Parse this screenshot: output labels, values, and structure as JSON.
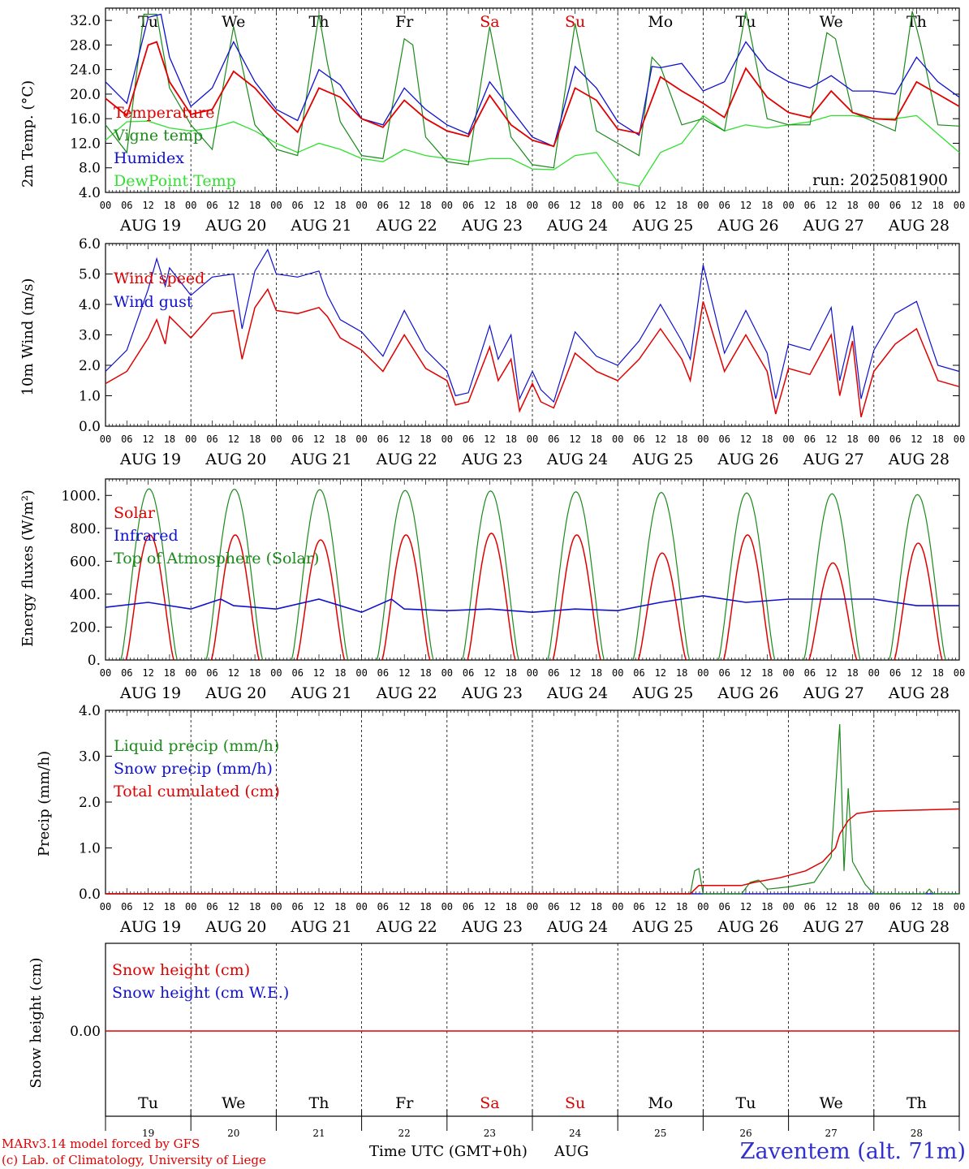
{
  "chart_data": [
    {
      "type": "line",
      "ylabel": "2m Temp. (°C)",
      "ylim": [
        4,
        34
      ],
      "yticks": [
        "4.0",
        "8.0",
        "12.0",
        "16.0",
        "20.0",
        "24.0",
        "28.0",
        "32.0"
      ],
      "legend": [
        "Temperature",
        "Vigne temp",
        "Humidex",
        "DewPoint Temp"
      ],
      "annotation": "run: 2025081900",
      "series": [
        {
          "name": "Temperature",
          "color": "#e00000",
          "x_days": [
            0,
            0.25,
            0.5,
            0.6,
            0.75,
            1,
            1.25,
            1.5,
            1.75,
            2,
            2.25,
            2.5,
            2.75,
            3,
            3.25,
            3.5,
            3.75,
            4,
            4.25,
            4.5,
            4.75,
            5,
            5.25,
            5.5,
            5.75,
            6,
            6.25,
            6.5,
            6.75,
            7,
            7.25,
            7.5,
            7.75,
            8,
            8.25,
            8.5,
            8.75,
            9,
            9.25,
            9.5,
            9.75,
            10
          ],
          "values": [
            19.3,
            16.5,
            28,
            28.5,
            22,
            16.7,
            17.5,
            23.7,
            21,
            17,
            13.8,
            21,
            19.5,
            16,
            14.6,
            19,
            16,
            14,
            13.1,
            19.8,
            15,
            12.5,
            11.5,
            21,
            19,
            14.3,
            13.6,
            22.8,
            20.5,
            18.5,
            16.2,
            24.2,
            19.5,
            17,
            16.2,
            20.5,
            17,
            16,
            15.8,
            22,
            20,
            18
          ]
        },
        {
          "name": "Vigne temp",
          "color": "#1a8a1a",
          "x_days": [
            0,
            0.25,
            0.45,
            0.6,
            0.75,
            1,
            1.25,
            1.5,
            1.75,
            2,
            2.25,
            2.5,
            2.6,
            2.75,
            3,
            3.25,
            3.5,
            3.6,
            3.75,
            4,
            4.25,
            4.5,
            4.75,
            5,
            5.25,
            5.5,
            5.75,
            6,
            6.25,
            6.4,
            6.5,
            6.75,
            7,
            7.25,
            7.5,
            7.75,
            8,
            8.25,
            8.45,
            8.55,
            8.75,
            9,
            9.25,
            9.45,
            9.55,
            9.75,
            10
          ],
          "values": [
            15,
            10.5,
            33,
            33,
            21,
            15,
            11,
            31,
            15,
            11,
            10,
            33,
            25,
            15.5,
            10,
            9.5,
            29,
            28,
            13,
            9,
            8.5,
            31,
            13,
            8.5,
            8,
            31.5,
            14,
            12,
            10,
            26,
            24.5,
            15,
            16,
            14,
            33.5,
            16,
            15,
            15,
            30,
            29,
            17,
            15.5,
            14,
            33.5,
            28,
            15,
            14.8
          ]
        },
        {
          "name": "Humidex",
          "color": "#1010d0",
          "x_days": [
            0,
            0.25,
            0.5,
            0.65,
            0.75,
            1,
            1.25,
            1.5,
            1.75,
            2,
            2.25,
            2.5,
            2.75,
            3,
            3.25,
            3.5,
            3.75,
            4,
            4.25,
            4.5,
            4.75,
            5,
            5.25,
            5.5,
            5.75,
            6,
            6.25,
            6.4,
            6.5,
            6.75,
            7,
            7.25,
            7.5,
            7.75,
            8,
            8.25,
            8.5,
            8.75,
            9,
            9.25,
            9.5,
            9.75,
            10
          ],
          "values": [
            22,
            18.5,
            32.5,
            33,
            26,
            18,
            21,
            28.5,
            22,
            17.5,
            15.7,
            24,
            21.5,
            16,
            15,
            21,
            17.5,
            15,
            13.5,
            22,
            17.5,
            13,
            11.5,
            24.5,
            21,
            15.5,
            13.3,
            24.5,
            24.3,
            25,
            20.5,
            22,
            28.5,
            24,
            22,
            21,
            23,
            20.5,
            20.5,
            20,
            26,
            22,
            19.5
          ]
        },
        {
          "name": "DewPoint Temp",
          "color": "#30e030",
          "x_days": [
            0,
            0.25,
            0.5,
            0.75,
            1,
            1.25,
            1.5,
            1.75,
            2,
            2.25,
            2.5,
            2.75,
            3,
            3.25,
            3.5,
            3.75,
            4,
            4.25,
            4.5,
            4.75,
            5,
            5.25,
            5.5,
            5.75,
            6,
            6.25,
            6.5,
            6.75,
            7,
            7.25,
            7.5,
            7.75,
            8,
            8.25,
            8.5,
            8.75,
            9,
            9.25,
            9.5,
            9.75,
            10
          ],
          "values": [
            12.5,
            15.5,
            15.6,
            14.5,
            14,
            14.5,
            15.5,
            14,
            12,
            10.5,
            12,
            11,
            9.5,
            9,
            11,
            10,
            9.5,
            9,
            9.5,
            9.5,
            7.8,
            7.7,
            10,
            10.5,
            5.7,
            5,
            10.5,
            12,
            16.5,
            14,
            15,
            14.5,
            15,
            15.5,
            16.5,
            16.5,
            16,
            16,
            16.5,
            13.5,
            10.5
          ]
        }
      ]
    },
    {
      "type": "line",
      "ylabel": "10m Wind (m/s)",
      "ylim": [
        0,
        6
      ],
      "yticks": [
        "0.0",
        "1.0",
        "2.0",
        "3.0",
        "4.0",
        "5.0",
        "6.0"
      ],
      "reference_line": 5,
      "legend": [
        "Wind speed",
        "Wind gust"
      ],
      "series": [
        {
          "name": "Wind speed",
          "color": "#e00000",
          "x_days": [
            0,
            0.25,
            0.5,
            0.6,
            0.7,
            0.75,
            1,
            1.25,
            1.5,
            1.6,
            1.75,
            1.9,
            2,
            2.25,
            2.5,
            2.6,
            2.75,
            3,
            3.25,
            3.5,
            3.75,
            4,
            4.1,
            4.25,
            4.5,
            4.6,
            4.75,
            4.85,
            5,
            5.1,
            5.25,
            5.5,
            5.75,
            6,
            6.25,
            6.5,
            6.75,
            6.85,
            7,
            7.25,
            7.5,
            7.75,
            7.85,
            8,
            8.25,
            8.5,
            8.6,
            8.75,
            8.85,
            9,
            9.25,
            9.5,
            9.75,
            10
          ],
          "values": [
            1.4,
            1.8,
            2.9,
            3.5,
            2.7,
            3.6,
            2.9,
            3.7,
            3.8,
            2.2,
            3.9,
            4.5,
            3.8,
            3.7,
            3.9,
            3.6,
            2.9,
            2.5,
            1.8,
            3,
            1.9,
            1.5,
            0.7,
            0.8,
            2.6,
            1.5,
            2.2,
            0.5,
            1.4,
            0.8,
            0.6,
            2.4,
            1.8,
            1.5,
            2.2,
            3.2,
            2.2,
            1.5,
            4.1,
            1.8,
            3,
            1.8,
            0.4,
            1.9,
            1.7,
            3,
            1,
            2.8,
            0.3,
            1.8,
            2.7,
            3.2,
            1.5,
            1.3
          ]
        },
        {
          "name": "Wind gust",
          "color": "#1010d0",
          "x_days": [
            0,
            0.25,
            0.5,
            0.6,
            0.7,
            0.75,
            1,
            1.25,
            1.5,
            1.6,
            1.75,
            1.9,
            2,
            2.25,
            2.5,
            2.6,
            2.75,
            3,
            3.25,
            3.5,
            3.75,
            4,
            4.1,
            4.25,
            4.5,
            4.6,
            4.75,
            4.85,
            5,
            5.1,
            5.25,
            5.5,
            5.75,
            6,
            6.25,
            6.5,
            6.75,
            6.85,
            7,
            7.25,
            7.5,
            7.75,
            7.85,
            8,
            8.25,
            8.5,
            8.6,
            8.75,
            8.85,
            9,
            9.25,
            9.5,
            9.75,
            10
          ],
          "values": [
            1.8,
            2.5,
            4.5,
            5.5,
            4.6,
            5.2,
            4.3,
            4.9,
            5,
            3.2,
            5.1,
            5.8,
            5,
            4.9,
            5.1,
            4.3,
            3.5,
            3.1,
            2.3,
            3.8,
            2.5,
            1.8,
            1,
            1.1,
            3.3,
            2.2,
            3,
            0.9,
            1.8,
            1.2,
            0.8,
            3.1,
            2.3,
            2,
            2.8,
            4,
            2.8,
            2.2,
            5.3,
            2.4,
            3.8,
            2.4,
            0.9,
            2.7,
            2.5,
            3.9,
            1.5,
            3.3,
            0.9,
            2.5,
            3.7,
            4.1,
            2,
            1.8
          ]
        }
      ]
    },
    {
      "type": "line",
      "ylabel": "Energy fluxes (W/m²)",
      "ylim": [
        0,
        1100
      ],
      "yticks": [
        "0.",
        "200.",
        "400.",
        "600.",
        "800.",
        "1000."
      ],
      "legend": [
        "Solar",
        "Infrared",
        "Top of Atmosphere (Solar)"
      ],
      "daily_peaks": {
        "Top of Atmosphere (Solar)": [
          1040,
          1038,
          1035,
          1030,
          1027,
          1022,
          1018,
          1015,
          1010,
          1005
        ],
        "Solar": [
          760,
          760,
          730,
          760,
          770,
          760,
          650,
          760,
          590,
          710
        ]
      },
      "series": [
        {
          "name": "Solar",
          "color": "#e00000"
        },
        {
          "name": "Infrared",
          "color": "#1010d0",
          "x_days": [
            0,
            0.5,
            1,
            1.35,
            1.5,
            2,
            2.5,
            3,
            3.35,
            3.5,
            4,
            4.5,
            5,
            5.5,
            6,
            6.5,
            7,
            7.5,
            8,
            8.5,
            9,
            9.5,
            10
          ],
          "values": [
            320,
            350,
            310,
            370,
            330,
            310,
            370,
            290,
            370,
            310,
            300,
            310,
            290,
            310,
            300,
            350,
            390,
            350,
            370,
            370,
            370,
            330,
            330
          ]
        },
        {
          "name": "Top of Atmosphere (Solar)",
          "color": "#1a8a1a"
        }
      ]
    },
    {
      "type": "line",
      "ylabel": "Precip (mm/h)",
      "ylim": [
        0,
        4
      ],
      "yticks": [
        "0.0",
        "1.0",
        "2.0",
        "3.0",
        "4.0"
      ],
      "legend": [
        "Liquid precip (mm/h)",
        "Snow precip (mm/h)",
        "Total cumulated (cm)"
      ],
      "series": [
        {
          "name": "Liquid precip (mm/h)",
          "color": "#1a8a1a",
          "x_days": [
            0,
            6.85,
            6.9,
            6.95,
            7,
            7.45,
            7.55,
            7.65,
            7.75,
            8,
            8.3,
            8.5,
            8.6,
            8.65,
            8.7,
            8.75,
            8.9,
            9,
            9.6,
            9.65,
            9.7,
            10
          ],
          "values": [
            0,
            0,
            0.5,
            0.55,
            0,
            0,
            0.25,
            0.3,
            0.1,
            0.15,
            0.25,
            0.8,
            3.7,
            0.5,
            2.3,
            0.7,
            0.2,
            0,
            0,
            0.1,
            0,
            0
          ]
        },
        {
          "name": "Snow precip (mm/h)",
          "color": "#1010d0",
          "x_days": [
            0,
            10
          ],
          "values": [
            0,
            0
          ]
        },
        {
          "name": "Total cumulated (cm)",
          "color": "#e00000",
          "x_days": [
            0,
            6.85,
            6.95,
            7.45,
            7.6,
            7.9,
            8.2,
            8.4,
            8.55,
            8.6,
            8.7,
            8.8,
            9,
            10
          ],
          "values": [
            0,
            0,
            0.18,
            0.18,
            0.25,
            0.35,
            0.5,
            0.7,
            1,
            1.3,
            1.6,
            1.75,
            1.8,
            1.85
          ]
        }
      ]
    },
    {
      "type": "line",
      "ylabel": "Snow height (cm)",
      "ytick": "0.00",
      "legend": [
        "Snow height (cm)",
        "Snow height (cm W.E.)"
      ],
      "series": [
        {
          "name": "Snow height (cm)",
          "color": "#e00000",
          "values": [
            0,
            0
          ]
        },
        {
          "name": "Snow height (cm W.E.)",
          "color": "#1010d0",
          "values": [
            0,
            0
          ]
        }
      ]
    }
  ],
  "days_top": [
    "Tu",
    "We",
    "Th",
    "Fr",
    "Sa",
    "Su",
    "Mo",
    "Tu",
    "We",
    "Th"
  ],
  "weekend_days": [
    "Sa",
    "Su"
  ],
  "date_labels": [
    "AUG 19",
    "AUG 20",
    "AUG 21",
    "AUG 22",
    "AUG 23",
    "AUG 24",
    "AUG 25",
    "AUG 26",
    "AUG 27",
    "AUG 28"
  ],
  "hour_labels": [
    "00",
    "06",
    "12",
    "18"
  ],
  "day_numbers": [
    "19",
    "20",
    "21",
    "22",
    "23",
    "24",
    "25",
    "26",
    "27",
    "28"
  ],
  "footer": {
    "credit_line1": "MARv3.14 model forced by GFS",
    "credit_line2": "(c) Lab. of Climatology, University of Liege",
    "xlabel": "Time UTC (GMT+0h)",
    "month": "AUG",
    "station": "Zaventem (alt. 71m)"
  },
  "colors": {
    "red": "#e00000",
    "green": "#1a8a1a",
    "blue": "#1010d0",
    "lightgreen": "#30e030",
    "station": "#3030d0"
  }
}
